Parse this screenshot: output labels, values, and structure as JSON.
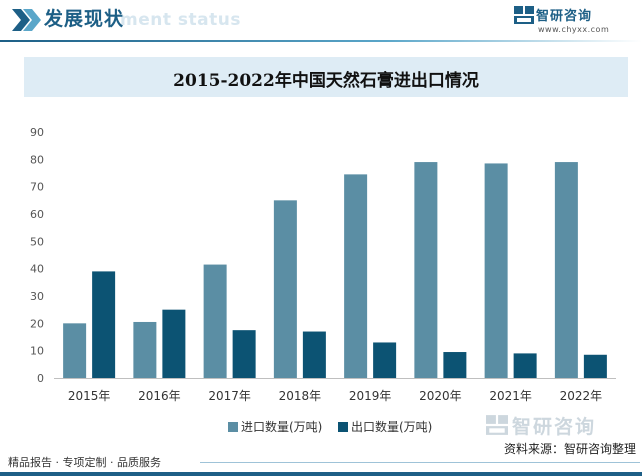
{
  "header": {
    "title": "发展现状",
    "subtitle": "ment status",
    "brand_name": "智研咨询",
    "brand_url": "www.chyxx.com"
  },
  "chart_title": "2015-2022年中国天然石膏进出口情况",
  "chart_data": {
    "type": "bar",
    "title": "2015-2022年中国天然石膏进出口情况",
    "categories": [
      "2015年",
      "2016年",
      "2017年",
      "2018年",
      "2019年",
      "2020年",
      "2021年",
      "2022年"
    ],
    "series": [
      {
        "name": "进口数量(万吨)",
        "color": "#5b8ea4",
        "values": [
          20,
          20.5,
          41.5,
          65,
          74.5,
          79,
          78.5,
          79
        ]
      },
      {
        "name": "出口数量(万吨)",
        "color": "#0c5373",
        "values": [
          39,
          25,
          17.5,
          17,
          13,
          9.5,
          9,
          8.5
        ]
      }
    ],
    "y_ticks": [
      "0",
      "10",
      "20",
      "30",
      "40",
      "50",
      "60",
      "70",
      "80",
      "90"
    ],
    "ylim": [
      0,
      90
    ],
    "legend_position": "bottom-center",
    "grid": false
  },
  "watermark": "智研咨询",
  "source": "资料来源：智研咨询整理",
  "footer": {
    "text": "精品报告 · 专项定制 · 品质服务"
  },
  "colors": {
    "brand": "#1d5f86",
    "band": "#deecf5"
  }
}
